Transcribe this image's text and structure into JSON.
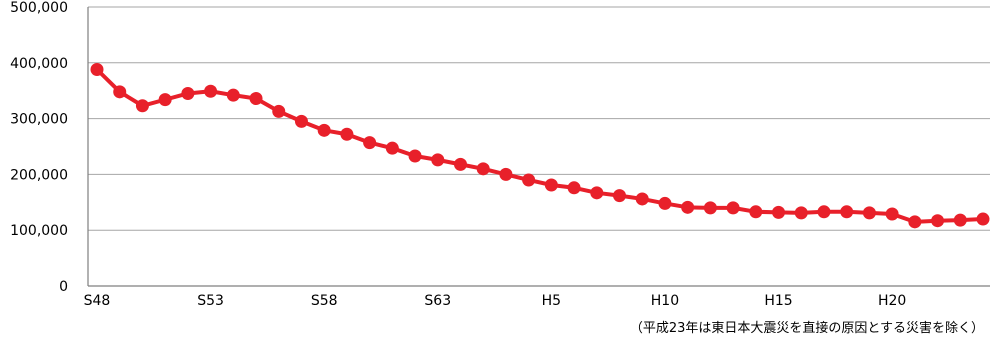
{
  "colors": {
    "series": "#e8202a",
    "axis": "#7f7f7f",
    "gridline": "#a6a6a6",
    "text": "#000000",
    "background": "#ffffff"
  },
  "chart_data": {
    "type": "line",
    "title": "",
    "xlabel": "",
    "ylabel": "",
    "ylim": [
      0,
      500000
    ],
    "yticks": [
      0,
      100000,
      200000,
      300000,
      400000,
      500000
    ],
    "ytick_labels": [
      "0",
      "100,000",
      "200,000",
      "300,000",
      "400,000",
      "500,000"
    ],
    "x_categories": [
      "S48",
      "S49",
      "S50",
      "S51",
      "S52",
      "S53",
      "S54",
      "S55",
      "S56",
      "S57",
      "S58",
      "S59",
      "S60",
      "S61",
      "S62",
      "S63",
      "H1",
      "H2",
      "H3",
      "H4",
      "H5",
      "H6",
      "H7",
      "H8",
      "H9",
      "H10",
      "H11",
      "H12",
      "H13",
      "H14",
      "H15",
      "H16",
      "H17",
      "H18",
      "H19",
      "H20",
      "H21",
      "H22",
      "H23",
      "H24"
    ],
    "xtick_labels": [
      "S48",
      "",
      "",
      "",
      "",
      "S53",
      "",
      "",
      "",
      "",
      "S58",
      "",
      "",
      "",
      "",
      "S63",
      "",
      "",
      "",
      "",
      "H5",
      "",
      "",
      "",
      "",
      "H10",
      "",
      "",
      "",
      "",
      "H15",
      "",
      "",
      "",
      "",
      "H20",
      "",
      "",
      "",
      ""
    ],
    "series": [
      {
        "values": [
          388000,
          348000,
          323000,
          334000,
          345000,
          349000,
          342000,
          336000,
          313000,
          295000,
          279000,
          272000,
          257000,
          247000,
          233000,
          226000,
          218000,
          210000,
          200000,
          190000,
          181000,
          176000,
          167000,
          162000,
          156000,
          148000,
          141000,
          140000,
          140000,
          133000,
          132000,
          131000,
          133000,
          133000,
          131000,
          129000,
          115000,
          117000,
          118000,
          120000
        ]
      }
    ],
    "grid": "horizontal",
    "legend": "none",
    "annotation": "（平成23年は東日本大震災を直接の原因とする災害を除く）"
  }
}
